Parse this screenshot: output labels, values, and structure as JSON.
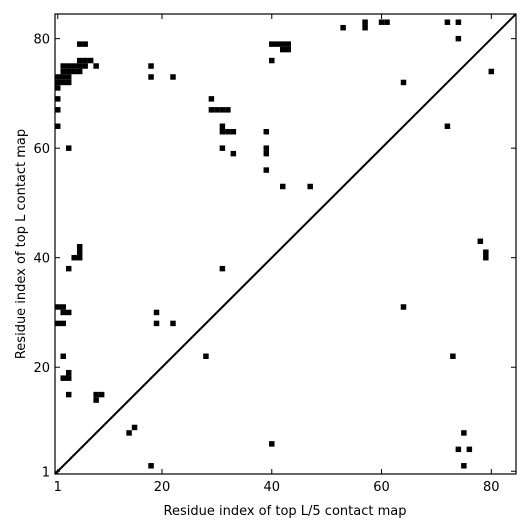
{
  "chart_data": {
    "type": "scatter",
    "marker": "square",
    "x_label": "Residue index of top L/5 contact map",
    "y_label": "Residue index of top L contact map",
    "xlim": [
      0.5,
      84.5
    ],
    "ylim": [
      0.5,
      84.5
    ],
    "xticks": [
      1,
      20,
      40,
      60,
      80
    ],
    "yticks": [
      1,
      20,
      40,
      60,
      80
    ],
    "diagonal": true,
    "series": [
      {
        "color": "#000000",
        "x": [
          5,
          6,
          7,
          2,
          3,
          4,
          5,
          6,
          8,
          2,
          3,
          4,
          5,
          1,
          2,
          3,
          1,
          2,
          3,
          5,
          6,
          1,
          1,
          1,
          1,
          3,
          18,
          18,
          22,
          29,
          29,
          30,
          31,
          32,
          31,
          31,
          32,
          33,
          31,
          33,
          39,
          39,
          39,
          39,
          40,
          41,
          42,
          43,
          42,
          43,
          40,
          42,
          47,
          53,
          57,
          57,
          60,
          61,
          64,
          72,
          74,
          74,
          80,
          72,
          5,
          5,
          5,
          4,
          3,
          31,
          1,
          2,
          2,
          1,
          2,
          3,
          19,
          19,
          22,
          28,
          2,
          2,
          3,
          3,
          3,
          8,
          9,
          8,
          14,
          15,
          18,
          40,
          64,
          73,
          78,
          79,
          79,
          75,
          74,
          76,
          75
        ],
        "values": [
          76,
          76,
          76,
          75,
          75,
          75,
          75,
          75,
          75,
          74,
          74,
          74,
          74,
          73,
          73,
          73,
          72,
          72,
          72,
          79,
          79,
          71,
          69,
          67,
          64,
          60,
          75,
          73,
          73,
          69,
          67,
          67,
          67,
          67,
          64,
          63,
          63,
          63,
          60,
          59,
          63,
          60,
          59,
          56,
          79,
          79,
          79,
          79,
          78,
          78,
          76,
          53,
          53,
          82,
          83,
          82,
          83,
          83,
          72,
          83,
          83,
          80,
          74,
          64,
          40,
          41,
          42,
          40,
          38,
          38,
          31,
          31,
          30,
          28,
          28,
          30,
          30,
          28,
          28,
          22,
          22,
          18,
          19,
          18,
          15,
          15,
          15,
          14,
          8,
          9,
          2,
          6,
          31,
          22,
          43,
          41,
          40,
          8,
          5,
          5,
          2
        ]
      }
    ]
  }
}
